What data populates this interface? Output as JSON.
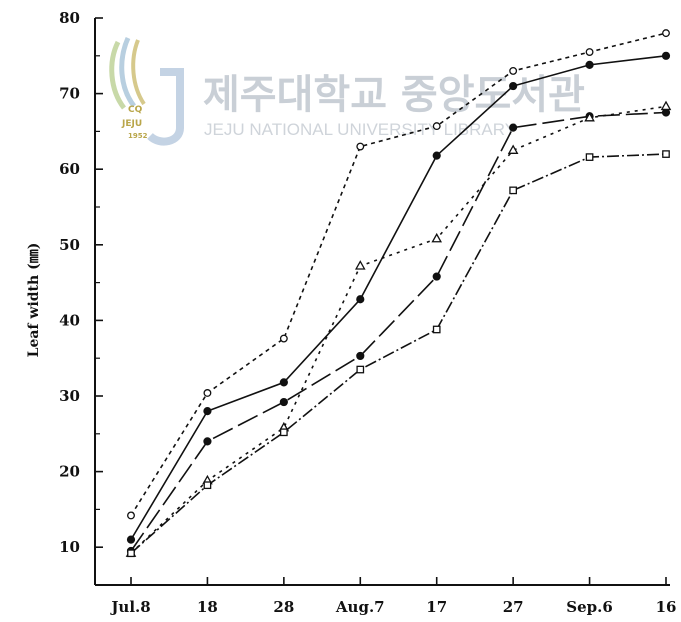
{
  "watermark": {
    "korean": "제주대학교 중앙도서관",
    "english": "JEJU NATIONAL UNIVERSITY LIBRARY",
    "badge_top": "CQ",
    "badge_text": "JEJU",
    "badge_small": "1952"
  },
  "chart_data": {
    "type": "line",
    "ylabel": "Leaf width (㎜)",
    "xlabel": "",
    "title": "",
    "ylim": [
      5,
      80
    ],
    "yticks": [
      10,
      20,
      30,
      40,
      50,
      60,
      70,
      80
    ],
    "categories": [
      "Jul.8",
      "18",
      "28",
      "Aug.7",
      "17",
      "27",
      "Sep.6",
      "16"
    ],
    "series": [
      {
        "marker": "open-circle",
        "dash": "4,4",
        "values": [
          14.2,
          30.4,
          37.6,
          63,
          65.7,
          73,
          75.5,
          78
        ]
      },
      {
        "marker": "filled-circle",
        "dash": "none",
        "values": [
          11,
          28,
          31.8,
          42.8,
          61.8,
          71,
          73.8,
          75
        ]
      },
      {
        "marker": "filled-circle",
        "dash": "22,6",
        "values": [
          9.5,
          24,
          29.2,
          35.3,
          45.8,
          65.5,
          67,
          67.5
        ]
      },
      {
        "marker": "open-triangle",
        "dash": "3,5",
        "values": [
          9.2,
          18.8,
          25.8,
          47.2,
          50.8,
          62.5,
          66.8,
          68.3
        ]
      },
      {
        "marker": "open-square",
        "dash": "12,3,2,3",
        "values": [
          9.2,
          18.2,
          25.2,
          33.5,
          38.8,
          57.2,
          61.6,
          62
        ]
      }
    ]
  }
}
